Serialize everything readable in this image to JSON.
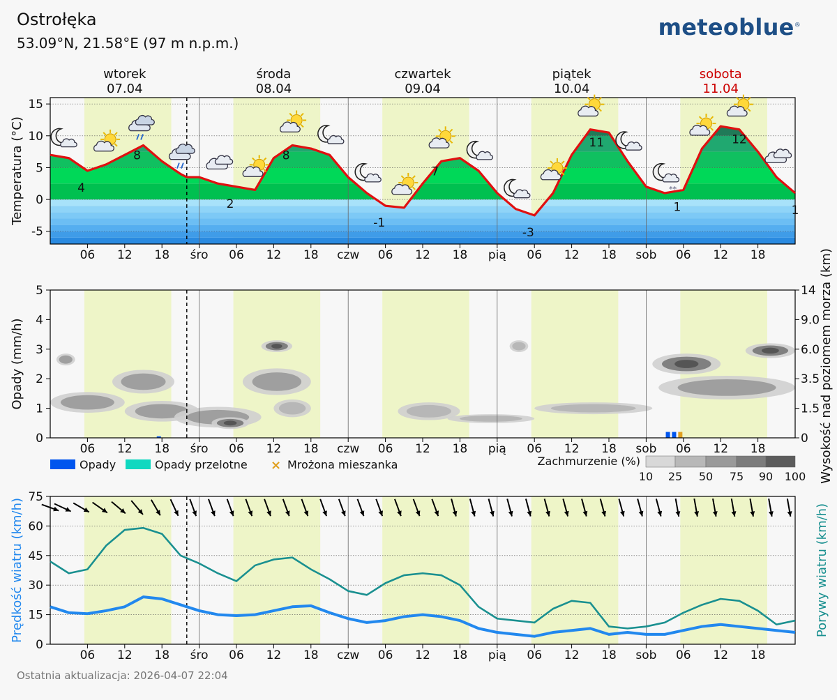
{
  "header": {
    "location": "Ostrołęka",
    "coords": "53.09°N, 21.58°E (97 m n.p.m.)",
    "logo": "meteoblue",
    "logo_mark": "®"
  },
  "footer": {
    "updated": "Ostatnia aktualizacja: 2026-04-07 22:04"
  },
  "days": [
    {
      "name": "wtorek",
      "date": "07.04",
      "weekend": false
    },
    {
      "name": "środa",
      "date": "08.04",
      "weekend": false
    },
    {
      "name": "czwartek",
      "date": "09.04",
      "weekend": false
    },
    {
      "name": "piątek",
      "date": "10.04",
      "weekend": false
    },
    {
      "name": "sobota",
      "date": "11.04",
      "weekend": true
    }
  ],
  "x_ticks": [
    "06",
    "12",
    "18",
    "śro",
    "06",
    "12",
    "18",
    "czw",
    "06",
    "12",
    "18",
    "pią",
    "06",
    "12",
    "18",
    "sob",
    "06",
    "12",
    "18"
  ],
  "colors": {
    "weekend": "#cc0000",
    "temp_line": "#e01010",
    "wind": "#2288ee",
    "gust": "#1a9090",
    "daylight": "#eef5c8",
    "precip": "#0055ee",
    "showers": "#10d8c0",
    "snow": "#e0a020"
  },
  "chart_data": [
    {
      "type": "area",
      "ylabel": "Temperatura (°C)",
      "ylim": [
        -7,
        16
      ],
      "yticks": [
        15,
        10,
        5,
        0,
        -5
      ],
      "x_hours": [
        0,
        3,
        6,
        9,
        12,
        15,
        18,
        21,
        22,
        24,
        27,
        30,
        33,
        36,
        39,
        42,
        45,
        48,
        51,
        54,
        57,
        60,
        63,
        66,
        69,
        72,
        75,
        78,
        81,
        84,
        87,
        90,
        93,
        96,
        99,
        102,
        105,
        108,
        111,
        114,
        117,
        120
      ],
      "temperature": [
        7,
        6.5,
        4.5,
        5.5,
        7,
        8.5,
        6,
        4,
        3.5,
        3.5,
        2.5,
        2,
        1.5,
        6.5,
        8.5,
        8,
        7,
        3.5,
        1,
        -1,
        -1.3,
        2.5,
        6,
        6.5,
        4.5,
        1,
        -1.5,
        -2.5,
        1,
        7,
        11,
        10.5,
        6,
        2,
        1,
        1.5,
        8,
        11.5,
        11,
        7.5,
        3.5,
        1
      ],
      "min_max_labels": [
        {
          "hour": 5,
          "value": "4"
        },
        {
          "hour": 14,
          "value": "8"
        },
        {
          "hour": 29,
          "value": "2"
        },
        {
          "hour": 38,
          "value": "8"
        },
        {
          "hour": 53,
          "value": "-1"
        },
        {
          "hour": 62,
          "value": "7"
        },
        {
          "hour": 77,
          "value": "-3"
        },
        {
          "hour": 88,
          "value": "11"
        },
        {
          "hour": 101,
          "value": "1"
        },
        {
          "hour": 111,
          "value": "12"
        },
        {
          "hour": 120,
          "value": "1"
        }
      ],
      "weather_icons": [
        {
          "hour": 2,
          "icon": "moon-cloud-icon"
        },
        {
          "hour": 9,
          "icon": "sun-cloud-icon"
        },
        {
          "hour": 14.5,
          "icon": "cloud-rain-icon"
        },
        {
          "hour": 21,
          "icon": "cloud-rain-icon"
        },
        {
          "hour": 27,
          "icon": "cloud-icon"
        },
        {
          "hour": 33,
          "icon": "sun-cloud-icon"
        },
        {
          "hour": 39,
          "icon": "sun-cloud-icon"
        },
        {
          "hour": 45,
          "icon": "moon-cloud-icon"
        },
        {
          "hour": 51,
          "icon": "moon-cloud-icon"
        },
        {
          "hour": 57,
          "icon": "sun-cloud-icon"
        },
        {
          "hour": 63,
          "icon": "sun-cloud-icon"
        },
        {
          "hour": 69,
          "icon": "moon-cloud-icon"
        },
        {
          "hour": 75,
          "icon": "moon-cloud-icon"
        },
        {
          "hour": 81,
          "icon": "sun-cloud-icon"
        },
        {
          "hour": 87,
          "icon": "sun-cloud-icon"
        },
        {
          "hour": 93,
          "icon": "moon-cloud-icon"
        },
        {
          "hour": 99,
          "icon": "moon-snow-icon"
        },
        {
          "hour": 105,
          "icon": "sun-cloud-icon"
        },
        {
          "hour": 111,
          "icon": "sun-cloud-icon"
        },
        {
          "hour": 117,
          "icon": "cloud-icon"
        }
      ]
    },
    {
      "type": "heatmap",
      "ylabel": "Opady (mm/h)",
      "ylabel_right": "Wysokość nad poziomem morza (km)",
      "ylim": [
        0,
        5
      ],
      "yticks": [
        0,
        1,
        2,
        3,
        4,
        5
      ],
      "yticks_right": [
        "0",
        "1.5",
        "3.5",
        "6.0",
        "9.0",
        "14"
      ],
      "legend": [
        "Opady",
        "Opady przelotne",
        "Mrożona mieszanka"
      ],
      "cloud_legend_title": "Zachmurzenie (%)",
      "cloud_legend_ticks": [
        "10",
        "25",
        "50",
        "75",
        "90",
        "100"
      ],
      "precip_bars": [
        {
          "hour": 17.5,
          "value": 0.05,
          "kind": "rain"
        },
        {
          "hour": 99.5,
          "value": 0.2,
          "kind": "rain"
        },
        {
          "hour": 100.5,
          "value": 0.2,
          "kind": "rain"
        },
        {
          "hour": 101.5,
          "value": 0.2,
          "kind": "mixed"
        }
      ],
      "cloud_blobs": [
        {
          "h0": 0,
          "h1": 12,
          "y": 1.2,
          "dy": 0.35,
          "cover": 50
        },
        {
          "h0": 1,
          "h1": 4,
          "y": 2.65,
          "dy": 0.2,
          "cover": 50
        },
        {
          "h0": 10,
          "h1": 20,
          "y": 1.9,
          "dy": 0.4,
          "cover": 50
        },
        {
          "h0": 12,
          "h1": 24,
          "y": 0.9,
          "dy": 0.35,
          "cover": 50
        },
        {
          "h0": 20,
          "h1": 34,
          "y": 0.7,
          "dy": 0.35,
          "cover": 50
        },
        {
          "h0": 26,
          "h1": 32,
          "y": 0.5,
          "dy": 0.2,
          "cover": 75
        },
        {
          "h0": 31,
          "h1": 42,
          "y": 1.9,
          "dy": 0.45,
          "cover": 50
        },
        {
          "h0": 34,
          "h1": 39,
          "y": 3.1,
          "dy": 0.2,
          "cover": 75
        },
        {
          "h0": 36,
          "h1": 42,
          "y": 1.0,
          "dy": 0.3,
          "cover": 25
        },
        {
          "h0": 56,
          "h1": 66,
          "y": 0.9,
          "dy": 0.3,
          "cover": 25
        },
        {
          "h0": 64,
          "h1": 78,
          "y": 0.65,
          "dy": 0.15,
          "cover": 25
        },
        {
          "h0": 74,
          "h1": 77,
          "y": 3.1,
          "dy": 0.2,
          "cover": 25
        },
        {
          "h0": 78,
          "h1": 97,
          "y": 1.0,
          "dy": 0.2,
          "cover": 25
        },
        {
          "h0": 97,
          "h1": 108,
          "y": 2.5,
          "dy": 0.35,
          "cover": 75
        },
        {
          "h0": 98,
          "h1": 120,
          "y": 1.7,
          "dy": 0.4,
          "cover": 50
        },
        {
          "h0": 112,
          "h1": 120,
          "y": 2.95,
          "dy": 0.25,
          "cover": 75
        }
      ]
    },
    {
      "type": "line",
      "ylabel": "Prędkość wiatru (km/h)",
      "ylabel_right": "Porywy wiatru (km/h)",
      "ylim": [
        0,
        75
      ],
      "yticks": [
        0,
        15,
        30,
        45,
        60,
        75
      ],
      "x_hours": [
        0,
        3,
        6,
        9,
        12,
        15,
        18,
        21,
        24,
        27,
        30,
        33,
        36,
        39,
        42,
        45,
        48,
        51,
        54,
        57,
        60,
        63,
        66,
        69,
        72,
        75,
        78,
        81,
        84,
        87,
        90,
        93,
        96,
        99,
        102,
        105,
        108,
        111,
        114,
        117,
        120
      ],
      "series": [
        {
          "name": "Prędkość wiatru",
          "values": [
            19,
            16,
            15.5,
            17,
            19,
            24,
            23,
            20,
            17,
            15,
            14.5,
            15,
            17,
            19,
            19.5,
            16,
            13,
            11,
            12,
            14,
            15,
            14,
            12,
            8,
            6,
            5,
            4,
            6,
            7,
            8,
            5,
            6,
            5,
            5,
            7,
            9,
            10,
            9,
            8,
            7,
            6
          ]
        },
        {
          "name": "Porywy wiatru",
          "values": [
            42,
            36,
            38,
            50,
            58,
            59,
            56,
            45,
            41,
            36,
            32,
            40,
            43,
            44,
            38,
            33,
            27,
            25,
            31,
            35,
            36,
            35,
            30,
            19,
            13,
            12,
            11,
            18,
            22,
            21,
            9,
            8,
            9,
            11,
            16,
            20,
            23,
            22,
            17,
            10,
            12
          ]
        }
      ],
      "wind_dir_hours": [
        0,
        2,
        5,
        8,
        11,
        14,
        17,
        20,
        23,
        26,
        29,
        32,
        35,
        38,
        41,
        44,
        47,
        50,
        53,
        56,
        59,
        62,
        65,
        68,
        71,
        74,
        77,
        80,
        83,
        86,
        89,
        92,
        95,
        98,
        101,
        104,
        107,
        110,
        113,
        116,
        119
      ],
      "wind_dir_deg": [
        290,
        295,
        300,
        305,
        310,
        320,
        330,
        335,
        340,
        340,
        340,
        340,
        340,
        340,
        340,
        340,
        340,
        340,
        340,
        340,
        340,
        340,
        345,
        345,
        345,
        345,
        345,
        345,
        345,
        345,
        345,
        345,
        345,
        345,
        350,
        350,
        350,
        350,
        350,
        350,
        350
      ]
    }
  ]
}
